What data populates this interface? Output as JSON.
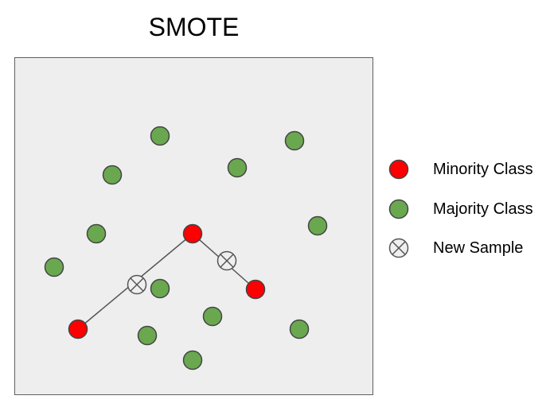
{
  "title": "SMOTE",
  "colors": {
    "minority": "#ff0000",
    "majority": "#6aa84f",
    "new_sample_fill": "#efefef",
    "stroke": "#444444",
    "line": "#555555",
    "panel_bg": "#eeeeee"
  },
  "legend": {
    "minority_label": "Minority Class",
    "majority_label": "Majority Class",
    "new_sample_label": "New Sample",
    "minority_icon": "filled-red-circle",
    "majority_icon": "filled-green-circle",
    "new_sample_icon": "circle-with-x-icon"
  }
}
